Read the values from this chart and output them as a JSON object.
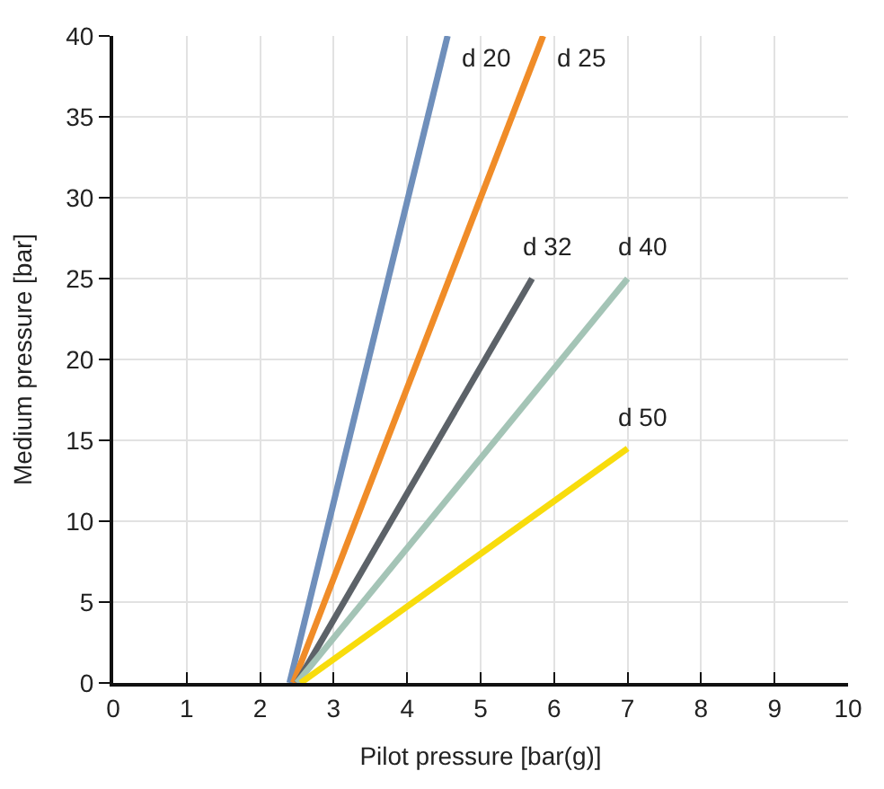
{
  "chart_data": {
    "type": "line",
    "xlabel": "Pilot pressure [bar(g)]",
    "ylabel": "Medium pressure [bar]",
    "xlim": [
      0,
      10
    ],
    "xticks": [
      0,
      1,
      2,
      3,
      4,
      5,
      6,
      7,
      8,
      9,
      10
    ],
    "ylim": [
      0,
      40
    ],
    "yticks": [
      0,
      5,
      10,
      15,
      20,
      25,
      30,
      35,
      40
    ],
    "grid": true,
    "legend": false,
    "marker": "none",
    "line_style": "solid",
    "series": [
      {
        "name": "d 20",
        "color": "#6f8fbb",
        "x": [
          2.4,
          4.55
        ],
        "values": [
          0,
          40
        ]
      },
      {
        "name": "d 25",
        "color": "#f08c28",
        "x": [
          2.45,
          5.85
        ],
        "values": [
          0,
          40
        ]
      },
      {
        "name": "d 32",
        "color": "#5c6268",
        "x": [
          2.5,
          5.7
        ],
        "values": [
          0,
          25
        ]
      },
      {
        "name": "d 40",
        "color": "#a4c4b6",
        "x": [
          2.5,
          7.0
        ],
        "values": [
          0,
          25
        ]
      },
      {
        "name": "d 50",
        "color": "#f8dc0c",
        "x": [
          2.55,
          7.0
        ],
        "values": [
          0,
          14.5
        ]
      }
    ]
  }
}
